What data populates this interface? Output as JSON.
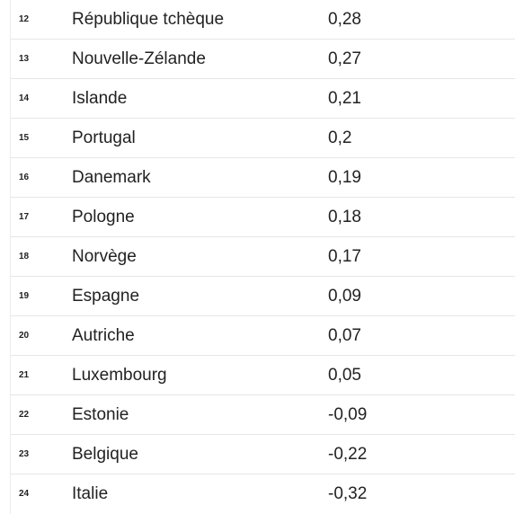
{
  "rows": [
    {
      "rank": "12",
      "country": "République tchèque",
      "value": "0,28"
    },
    {
      "rank": "13",
      "country": "Nouvelle-Zélande",
      "value": "0,27"
    },
    {
      "rank": "14",
      "country": "Islande",
      "value": "0,21"
    },
    {
      "rank": "15",
      "country": "Portugal",
      "value": "0,2"
    },
    {
      "rank": "16",
      "country": "Danemark",
      "value": "0,19"
    },
    {
      "rank": "17",
      "country": "Pologne",
      "value": "0,18"
    },
    {
      "rank": "18",
      "country": "Norvège",
      "value": "0,17"
    },
    {
      "rank": "19",
      "country": "Espagne",
      "value": "0,09"
    },
    {
      "rank": "20",
      "country": "Autriche",
      "value": "0,07"
    },
    {
      "rank": "21",
      "country": "Luxembourg",
      "value": "0,05"
    },
    {
      "rank": "22",
      "country": "Estonie",
      "value": "-0,09"
    },
    {
      "rank": "23",
      "country": "Belgique",
      "value": "-0,22"
    },
    {
      "rank": "24",
      "country": "Italie",
      "value": "-0,32"
    }
  ]
}
